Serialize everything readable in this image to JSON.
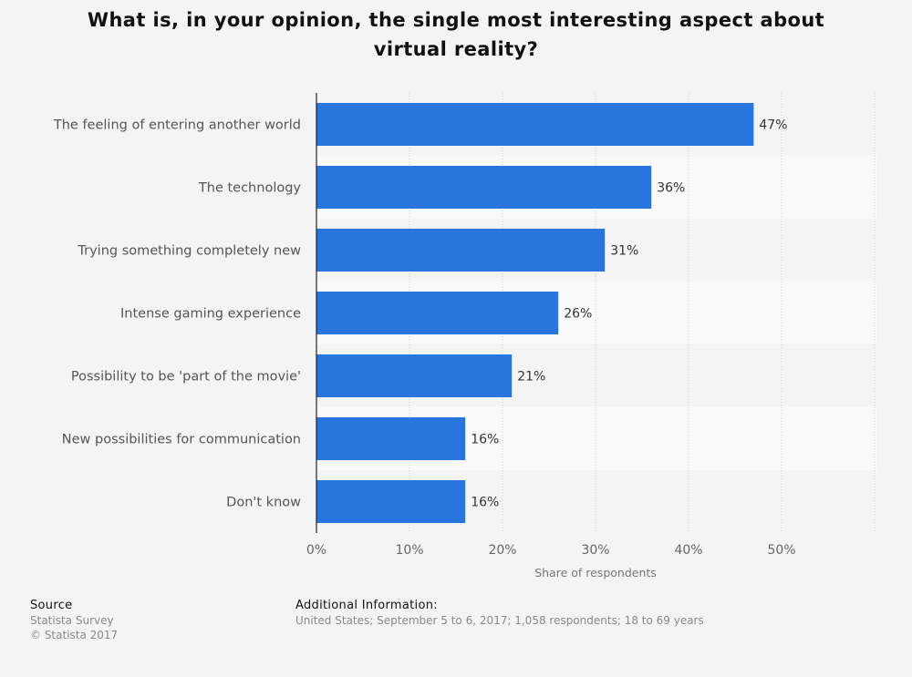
{
  "title": "What is, in your opinion, the single most interesting aspect about virtual reality?",
  "chart_data": {
    "type": "bar",
    "orientation": "horizontal",
    "categories": [
      "The feeling of entering another world",
      "The technology",
      "Trying something completely new",
      "Intense gaming experience",
      "Possibility to be 'part of the movie'",
      "New possibilities for communication",
      "Don't know"
    ],
    "values": [
      47,
      36,
      31,
      26,
      21,
      16,
      16
    ],
    "value_labels": [
      "47%",
      "36%",
      "31%",
      "26%",
      "21%",
      "16%",
      "16%"
    ],
    "xlabel": "Share of respondents",
    "xticks": [
      "0%",
      "10%",
      "20%",
      "30%",
      "40%",
      "50%"
    ],
    "xlim": [
      0,
      60
    ],
    "grid": true,
    "bar_color": "#2875de"
  },
  "footer": {
    "source_heading": "Source",
    "source_lines": [
      "Statista Survey",
      "© Statista 2017"
    ],
    "info_heading": "Additional Information:",
    "info_text": "United States; September 5 to 6, 2017; 1,058 respondents; 18 to 69 years"
  }
}
